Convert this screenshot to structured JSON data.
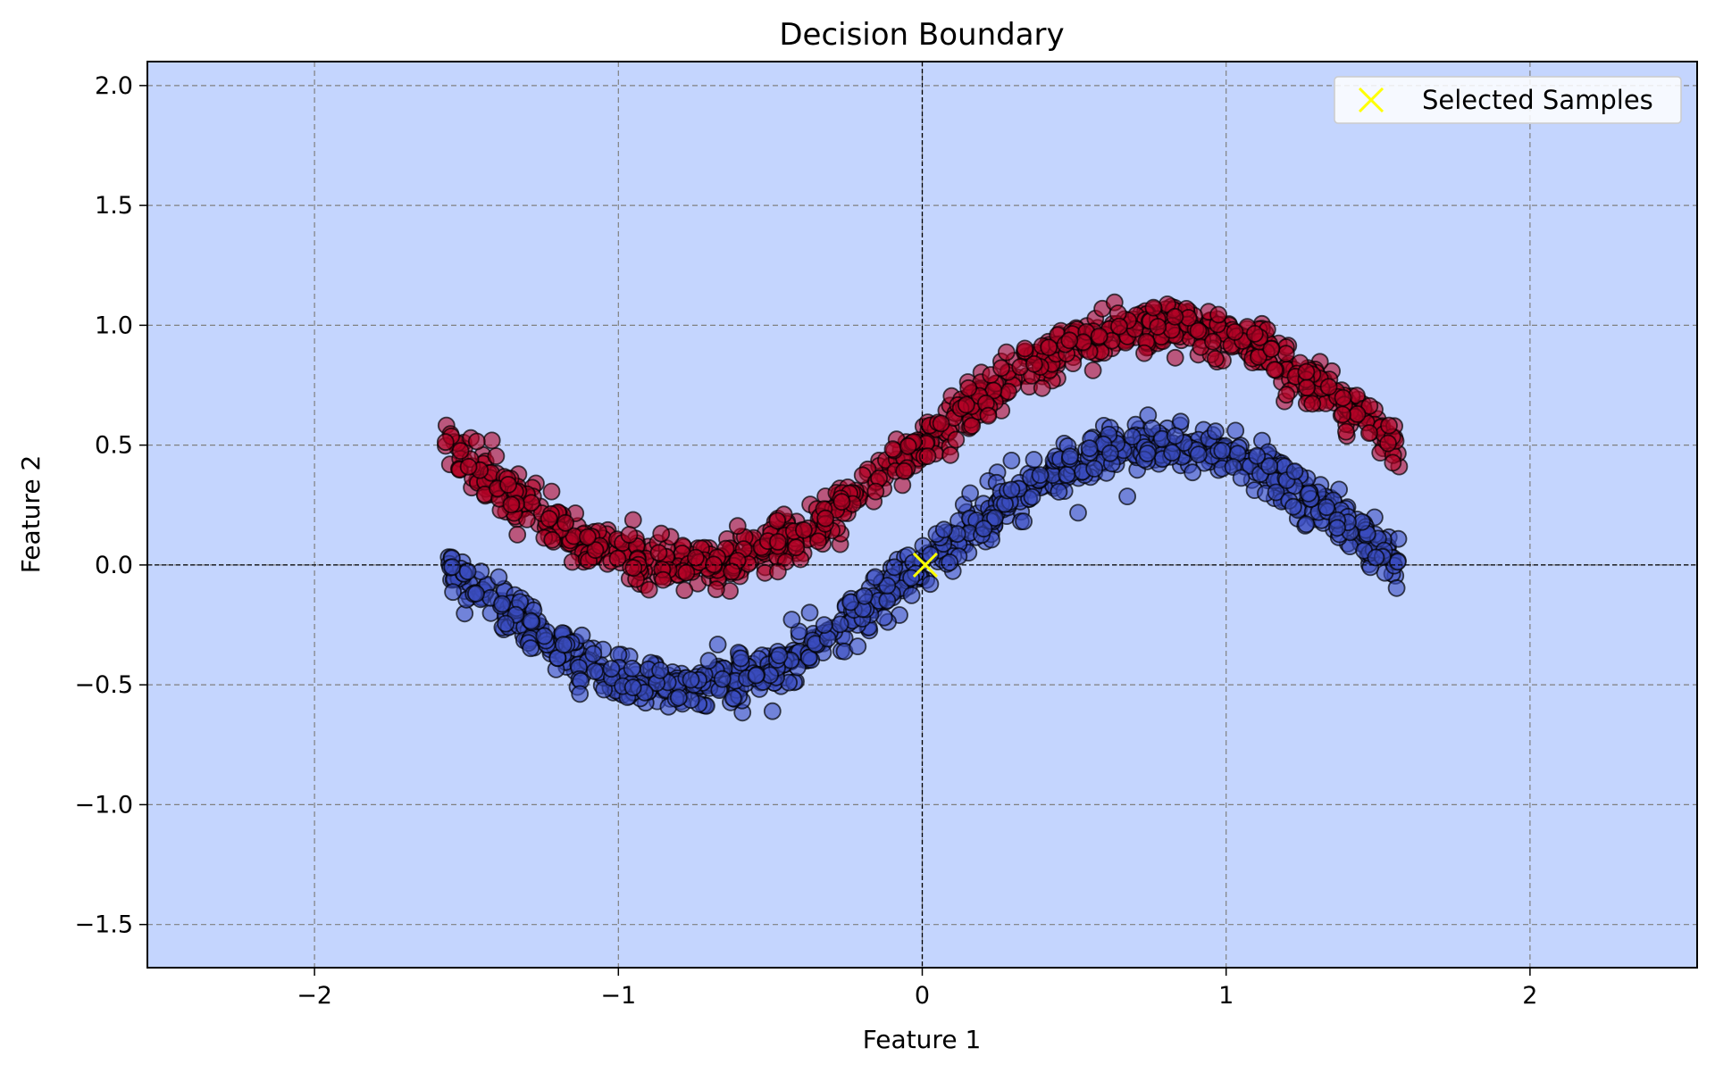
{
  "chart_data": {
    "type": "scatter",
    "title": "Decision Boundary",
    "xlabel": "Feature 1",
    "ylabel": "Feature 2",
    "xlim": [
      -2.55,
      2.55
    ],
    "ylim": [
      -1.68,
      2.1
    ],
    "xticks": [
      -2,
      -1,
      0,
      1,
      2
    ],
    "xtick_labels": [
      "−2",
      "−1",
      "0",
      "1",
      "2"
    ],
    "yticks": [
      -1.5,
      -1.0,
      -0.5,
      0.0,
      0.5,
      1.0,
      1.5,
      2.0
    ],
    "ytick_labels": [
      "−1.5",
      "−1.0",
      "−0.5",
      "0.0",
      "0.5",
      "1.0",
      "1.5",
      "2.0"
    ],
    "grid": true,
    "reference_lines": {
      "x": 0,
      "y": 0
    },
    "background_color": "#c4d5fe",
    "legend": {
      "position": "top-right",
      "entries": [
        "Selected Samples"
      ]
    },
    "series": [
      {
        "class": 0,
        "color": "#3b4cc0",
        "curve": {
          "amplitude": 0.5,
          "frequency": 2,
          "offset": 0.0,
          "x_range": [
            -1.57,
            1.57
          ],
          "n_points": 1000,
          "noise_std": 0.05
        }
      },
      {
        "class": 1,
        "color": "#b40426",
        "curve": {
          "amplitude": 0.5,
          "frequency": 2,
          "offset": 0.5,
          "x_range": [
            -1.57,
            1.57
          ],
          "n_points": 1000,
          "noise_std": 0.05
        }
      },
      {
        "name": "Selected Samples",
        "marker": "x",
        "color": "#ffff00",
        "x": [
          0.01
        ],
        "y": [
          0.0
        ]
      }
    ]
  }
}
